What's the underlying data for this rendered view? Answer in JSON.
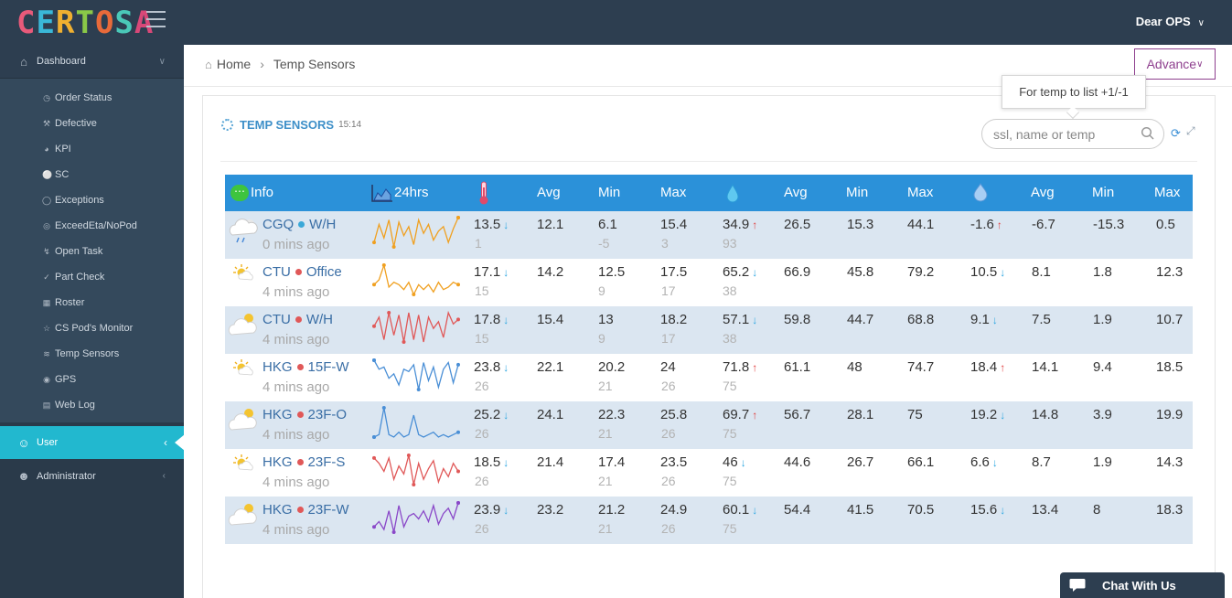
{
  "header": {
    "logo": "CERTOSA",
    "user": "Dear OPS"
  },
  "sidebar": {
    "dashboard": "Dashboard",
    "items": [
      "Order Status",
      "Defective",
      "KPI",
      "SC",
      "Exceptions",
      "ExceedEta/NoPod",
      "Open Task",
      "Part Check",
      "Roster",
      "CS Pod's Monitor",
      "Temp Sensors",
      "GPS",
      "Web Log"
    ],
    "user": "User",
    "administrator": "Administrator"
  },
  "breadcrumb": {
    "home": "Home",
    "current": "Temp Sensors"
  },
  "advance_button": "Advance",
  "panel": {
    "title": "TEMP SENSORS",
    "time": "15:14"
  },
  "tooltip": "For temp to list +1/-1",
  "search": {
    "placeholder": "ssl, name or temp"
  },
  "table": {
    "headers": {
      "info": "Info",
      "history": "24hrs",
      "avg": "Avg",
      "min": "Min",
      "max": "Max"
    },
    "rows": [
      {
        "site": "CGQ",
        "zone": "W/H",
        "dot": "#3aa8d8",
        "ago": "0 mins ago",
        "weather": "cloud-rain",
        "spark_color": "#f0a020",
        "spark": [
          6,
          14,
          8,
          16,
          4,
          15,
          9,
          13,
          5,
          16,
          10,
          14,
          7,
          11,
          13,
          6,
          12,
          17
        ],
        "t": "13.5",
        "t_dir": "down",
        "t_sub": "1",
        "t_avg": "12.1",
        "t_min": "6.1",
        "t_sub_min": "-5",
        "t_max": "15.4",
        "t_sub_max": "3",
        "h": "34.9",
        "h_dir": "up",
        "h_sub": "93",
        "h_avg": "26.5",
        "h_min": "15.3",
        "h_max": "44.1",
        "d": "-1.6",
        "d_dir": "up",
        "d_avg": "-6.7",
        "d_min": "-15.3",
        "d_max": "0.5"
      },
      {
        "site": "CTU",
        "zone": "Office",
        "dot": "#e05858",
        "ago": "4 mins ago",
        "weather": "sun-cloud",
        "spark_color": "#f0a020",
        "spark": [
          8,
          10,
          16,
          7,
          9,
          8,
          6,
          9,
          4,
          8,
          6,
          8,
          5,
          9,
          6,
          7,
          9,
          8
        ],
        "t": "17.1",
        "t_dir": "down",
        "t_sub": "15",
        "t_avg": "14.2",
        "t_min": "12.5",
        "t_sub_min": "9",
        "t_max": "17.5",
        "t_sub_max": "17",
        "h": "65.2",
        "h_dir": "down",
        "h_sub": "38",
        "h_avg": "66.9",
        "h_min": "45.8",
        "h_max": "79.2",
        "d": "10.5",
        "d_dir": "down",
        "d_avg": "8.1",
        "d_min": "1.8",
        "d_max": "12.3"
      },
      {
        "site": "CTU",
        "zone": "W/H",
        "dot": "#e05858",
        "ago": "4 mins ago",
        "weather": "cloud-sun",
        "spark_color": "#e05858",
        "spark": [
          10,
          14,
          4,
          16,
          6,
          15,
          3,
          16,
          4,
          15,
          3,
          14,
          9,
          12,
          5,
          16,
          11,
          13
        ],
        "t": "17.8",
        "t_dir": "down",
        "t_sub": "15",
        "t_avg": "15.4",
        "t_min": "13",
        "t_sub_min": "9",
        "t_max": "18.2",
        "t_sub_max": "17",
        "h": "57.1",
        "h_dir": "down",
        "h_sub": "38",
        "h_avg": "59.8",
        "h_min": "44.7",
        "h_max": "68.8",
        "d": "9.1",
        "d_dir": "down",
        "d_avg": "7.5",
        "d_min": "1.9",
        "d_max": "10.7"
      },
      {
        "site": "HKG",
        "zone": "15F-W",
        "dot": "#e05858",
        "ago": "4 mins ago",
        "weather": "sun-cloud",
        "spark_color": "#4a8fd6",
        "spark": [
          16,
          12,
          13,
          8,
          10,
          5,
          12,
          11,
          14,
          3,
          15,
          7,
          13,
          4,
          12,
          15,
          6,
          14
        ],
        "t": "23.8",
        "t_dir": "down",
        "t_sub": "26",
        "t_avg": "22.1",
        "t_min": "20.2",
        "t_sub_min": "21",
        "t_max": "24",
        "t_sub_max": "26",
        "h": "71.8",
        "h_dir": "up",
        "h_sub": "75",
        "h_avg": "61.1",
        "h_min": "48",
        "h_max": "74.7",
        "d": "18.4",
        "d_dir": "up",
        "d_avg": "14.1",
        "d_min": "9.4",
        "d_max": "18.5"
      },
      {
        "site": "HKG",
        "zone": "23F-O",
        "dot": "#e05858",
        "ago": "4 mins ago",
        "weather": "cloud-sun",
        "spark_color": "#4a8fd6",
        "spark": [
          4,
          5,
          16,
          5,
          4,
          6,
          4,
          5,
          13,
          5,
          4,
          5,
          6,
          4,
          5,
          4,
          5,
          6
        ],
        "t": "25.2",
        "t_dir": "down",
        "t_sub": "26",
        "t_avg": "24.1",
        "t_min": "22.3",
        "t_sub_min": "21",
        "t_max": "25.8",
        "t_sub_max": "26",
        "h": "69.7",
        "h_dir": "up",
        "h_sub": "75",
        "h_avg": "56.7",
        "h_min": "28.1",
        "h_max": "75",
        "d": "19.2",
        "d_dir": "down",
        "d_avg": "14.8",
        "d_min": "3.9",
        "d_max": "19.9"
      },
      {
        "site": "HKG",
        "zone": "23F-S",
        "dot": "#e05858",
        "ago": "4 mins ago",
        "weather": "sun-cloud",
        "spark_color": "#e05858",
        "spark": [
          14,
          12,
          9,
          14,
          6,
          11,
          8,
          15,
          4,
          12,
          6,
          10,
          13,
          5,
          10,
          7,
          12,
          9
        ],
        "t": "18.5",
        "t_dir": "down",
        "t_sub": "26",
        "t_avg": "21.4",
        "t_min": "17.4",
        "t_sub_min": "21",
        "t_max": "23.5",
        "t_sub_max": "26",
        "h": "46",
        "h_dir": "down",
        "h_sub": "75",
        "h_avg": "44.6",
        "h_min": "26.7",
        "h_max": "66.1",
        "d": "6.6",
        "d_dir": "down",
        "d_avg": "8.7",
        "d_min": "1.9",
        "d_max": "14.3"
      },
      {
        "site": "HKG",
        "zone": "23F-W",
        "dot": "#e05858",
        "ago": "4 mins ago",
        "weather": "cloud-sun",
        "spark_color": "#8a48c8",
        "spark": [
          6,
          8,
          5,
          12,
          4,
          14,
          6,
          10,
          11,
          9,
          12,
          8,
          14,
          7,
          11,
          13,
          9,
          15
        ],
        "t": "23.9",
        "t_dir": "down",
        "t_sub": "26",
        "t_avg": "23.2",
        "t_min": "21.2",
        "t_sub_min": "21",
        "t_max": "24.9",
        "t_sub_max": "26",
        "h": "60.1",
        "h_dir": "down",
        "h_sub": "75",
        "h_avg": "54.4",
        "h_min": "41.5",
        "h_max": "70.5",
        "d": "15.6",
        "d_dir": "down",
        "d_avg": "13.4",
        "d_min": "8",
        "d_max": "18.3"
      }
    ]
  },
  "chat": {
    "label": "Chat With Us"
  }
}
